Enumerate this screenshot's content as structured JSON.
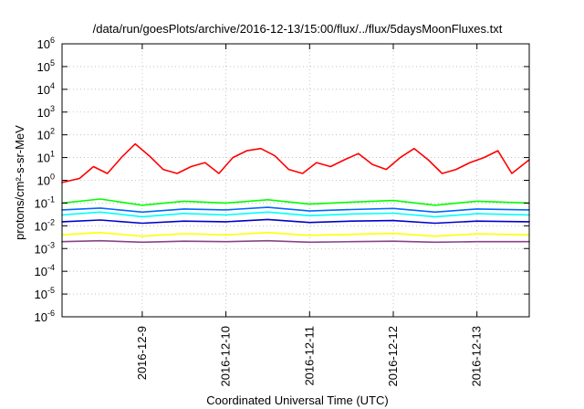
{
  "chart_data": {
    "type": "line",
    "title": "/data/run/goesPlots/archive/2016-12-13/15:00/flux/../flux/5daysMoonFluxes.txt",
    "xlabel": "Coordinated Universal Time (UTC)",
    "ylabel": "protons/cm²-s-sr-MeV",
    "x_scale": "time",
    "y_scale": "log",
    "xlim": [
      "2016-12-08T01:00",
      "2016-12-13T15:00"
    ],
    "ylim": [
      1e-06,
      1000000.0
    ],
    "grid": true,
    "x_ticks": [
      "2016-12-9",
      "2016-12-10",
      "2016-12-11",
      "2016-12-12",
      "2016-12-13"
    ],
    "x_tick_values": [
      "2016-12-09T00:00",
      "2016-12-10T00:00",
      "2016-12-11T00:00",
      "2016-12-12T00:00",
      "2016-12-13T00:00"
    ],
    "y_ticks": [
      {
        "base": "10",
        "exp": "-6",
        "value": 1e-06
      },
      {
        "base": "10",
        "exp": "-5",
        "value": 1e-05
      },
      {
        "base": "10",
        "exp": "-4",
        "value": 0.0001
      },
      {
        "base": "10",
        "exp": "-3",
        "value": 0.001
      },
      {
        "base": "10",
        "exp": "-2",
        "value": 0.01
      },
      {
        "base": "10",
        "exp": "-1",
        "value": 0.1
      },
      {
        "base": "10",
        "exp": "0",
        "value": 1
      },
      {
        "base": "10",
        "exp": "1",
        "value": 10
      },
      {
        "base": "10",
        "exp": "2",
        "value": 100
      },
      {
        "base": "10",
        "exp": "3",
        "value": 1000
      },
      {
        "base": "10",
        "exp": "4",
        "value": 10000
      },
      {
        "base": "10",
        "exp": "5",
        "value": 100000
      },
      {
        "base": "10",
        "exp": "6",
        "value": 1000000
      }
    ],
    "series": [
      {
        "color": "#ff0000",
        "x": [
          "2016-12-08T01:00",
          "2016-12-08T06:00",
          "2016-12-08T10:00",
          "2016-12-08T14:00",
          "2016-12-08T18:00",
          "2016-12-08T22:00",
          "2016-12-09T02:00",
          "2016-12-09T06:00",
          "2016-12-09T10:00",
          "2016-12-09T14:00",
          "2016-12-09T18:00",
          "2016-12-09T22:00",
          "2016-12-10T02:00",
          "2016-12-10T06:00",
          "2016-12-10T10:00",
          "2016-12-10T14:00",
          "2016-12-10T18:00",
          "2016-12-10T22:00",
          "2016-12-11T02:00",
          "2016-12-11T06:00",
          "2016-12-11T10:00",
          "2016-12-11T14:00",
          "2016-12-11T18:00",
          "2016-12-11T22:00",
          "2016-12-12T02:00",
          "2016-12-12T06:00",
          "2016-12-12T10:00",
          "2016-12-12T14:00",
          "2016-12-12T18:00",
          "2016-12-12T22:00",
          "2016-12-13T02:00",
          "2016-12-13T06:00",
          "2016-12-13T10:00",
          "2016-12-13T15:00"
        ],
        "y": [
          0.8,
          1.2,
          4,
          2,
          10,
          40,
          12,
          3,
          2,
          4,
          6,
          2,
          10,
          20,
          25,
          12,
          3,
          2,
          6,
          4,
          8,
          15,
          5,
          3,
          10,
          25,
          8,
          2,
          3,
          6,
          10,
          20,
          2,
          8
        ]
      },
      {
        "color": "#00ff00",
        "x": [
          "2016-12-08T01:00",
          "2016-12-08T12:00",
          "2016-12-09T00:00",
          "2016-12-09T12:00",
          "2016-12-10T00:00",
          "2016-12-10T12:00",
          "2016-12-11T00:00",
          "2016-12-11T12:00",
          "2016-12-12T00:00",
          "2016-12-12T12:00",
          "2016-12-13T00:00",
          "2016-12-13T15:00"
        ],
        "y": [
          0.1,
          0.15,
          0.08,
          0.12,
          0.1,
          0.14,
          0.09,
          0.11,
          0.13,
          0.08,
          0.12,
          0.1
        ]
      },
      {
        "color": "#00ffff",
        "x": [
          "2016-12-08T01:00",
          "2016-12-08T12:00",
          "2016-12-09T00:00",
          "2016-12-09T12:00",
          "2016-12-10T00:00",
          "2016-12-10T12:00",
          "2016-12-11T00:00",
          "2016-12-11T12:00",
          "2016-12-12T00:00",
          "2016-12-12T12:00",
          "2016-12-13T00:00",
          "2016-12-13T15:00"
        ],
        "y": [
          0.03,
          0.04,
          0.025,
          0.035,
          0.03,
          0.04,
          0.028,
          0.033,
          0.036,
          0.025,
          0.034,
          0.03
        ]
      },
      {
        "color": "#0066ff",
        "x": [
          "2016-12-08T01:00",
          "2016-12-08T12:00",
          "2016-12-09T00:00",
          "2016-12-09T12:00",
          "2016-12-10T00:00",
          "2016-12-10T12:00",
          "2016-12-11T00:00",
          "2016-12-11T12:00",
          "2016-12-12T00:00",
          "2016-12-12T12:00",
          "2016-12-13T00:00",
          "2016-12-13T15:00"
        ],
        "y": [
          0.05,
          0.06,
          0.04,
          0.055,
          0.05,
          0.065,
          0.045,
          0.052,
          0.058,
          0.04,
          0.055,
          0.05
        ]
      },
      {
        "color": "#0000cc",
        "x": [
          "2016-12-08T01:00",
          "2016-12-08T12:00",
          "2016-12-09T00:00",
          "2016-12-09T12:00",
          "2016-12-10T00:00",
          "2016-12-10T12:00",
          "2016-12-11T00:00",
          "2016-12-11T12:00",
          "2016-12-12T00:00",
          "2016-12-12T12:00",
          "2016-12-13T00:00",
          "2016-12-13T15:00"
        ],
        "y": [
          0.015,
          0.018,
          0.013,
          0.016,
          0.015,
          0.019,
          0.014,
          0.016,
          0.017,
          0.013,
          0.016,
          0.015
        ]
      },
      {
        "color": "#ffff00",
        "x": [
          "2016-12-08T01:00",
          "2016-12-08T12:00",
          "2016-12-09T00:00",
          "2016-12-09T12:00",
          "2016-12-10T00:00",
          "2016-12-10T12:00",
          "2016-12-11T00:00",
          "2016-12-11T12:00",
          "2016-12-12T00:00",
          "2016-12-12T12:00",
          "2016-12-13T00:00",
          "2016-12-13T15:00"
        ],
        "y": [
          0.004,
          0.005,
          0.0035,
          0.0045,
          0.004,
          0.005,
          0.0038,
          0.0042,
          0.0046,
          0.0035,
          0.0044,
          0.004
        ]
      },
      {
        "color": "#884488",
        "x": [
          "2016-12-08T01:00",
          "2016-12-08T12:00",
          "2016-12-09T00:00",
          "2016-12-09T12:00",
          "2016-12-10T00:00",
          "2016-12-10T12:00",
          "2016-12-11T00:00",
          "2016-12-11T12:00",
          "2016-12-12T00:00",
          "2016-12-12T12:00",
          "2016-12-13T00:00",
          "2016-12-13T15:00"
        ],
        "y": [
          0.002,
          0.0022,
          0.0019,
          0.0021,
          0.002,
          0.0022,
          0.0019,
          0.002,
          0.0021,
          0.0019,
          0.002,
          0.002
        ]
      }
    ]
  }
}
